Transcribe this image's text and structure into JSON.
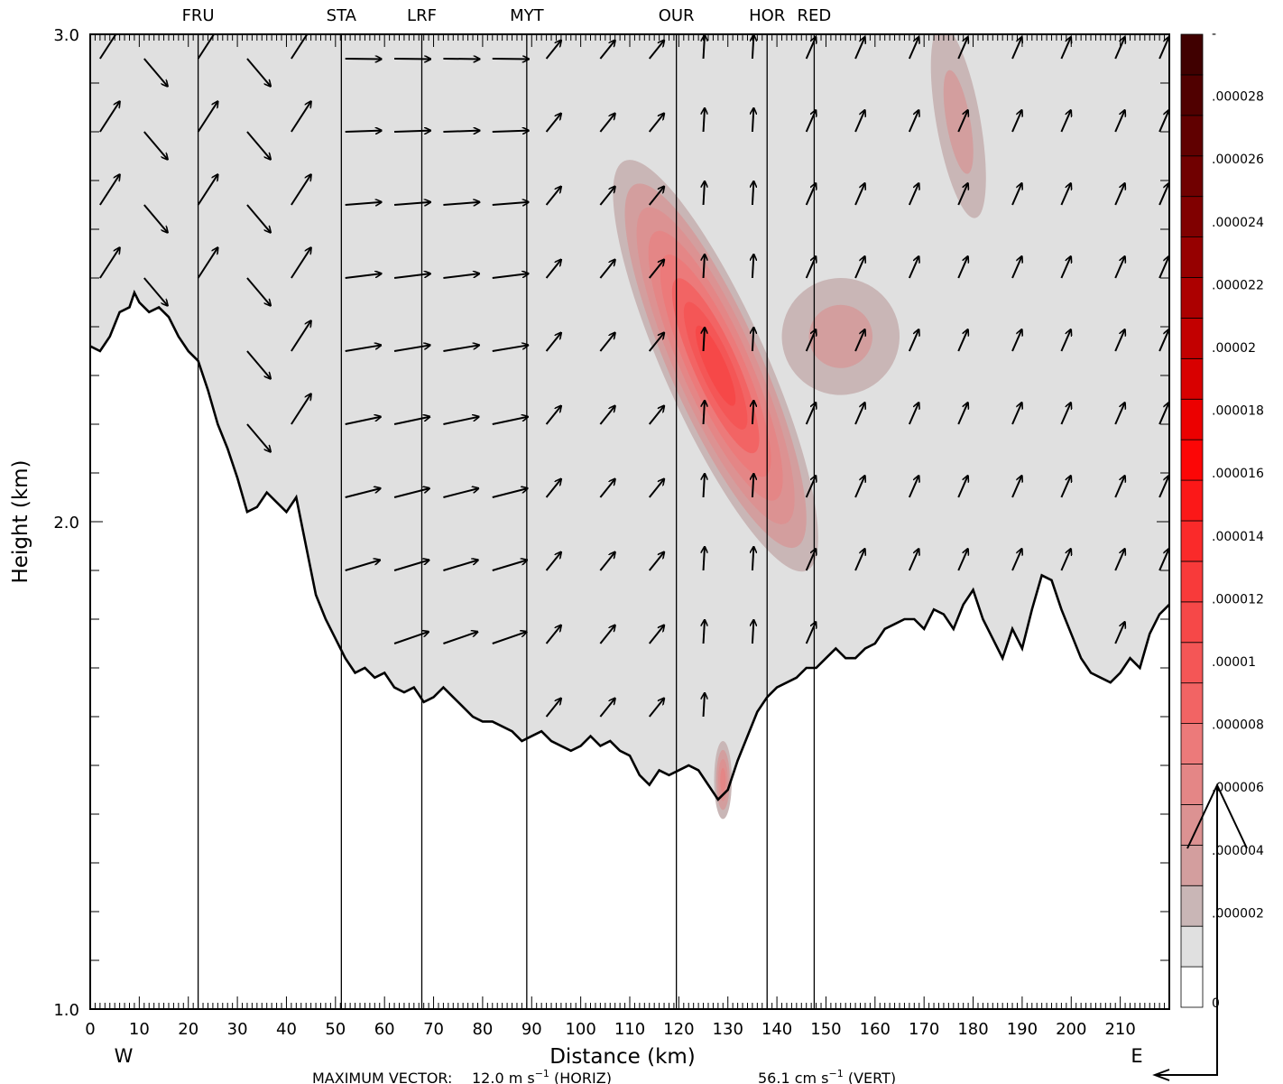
{
  "chart_data": {
    "type": "contour-vector-cross-section",
    "xlabel": "Distance (km)",
    "ylabel": "Height (km)",
    "xlim": [
      0,
      220
    ],
    "ylim": [
      1.0,
      3.0
    ],
    "x_ticks": [
      "0",
      "10",
      "20",
      "30",
      "40",
      "50",
      "60",
      "70",
      "80",
      "90",
      "100",
      "110",
      "120",
      "130",
      "140",
      "150",
      "160",
      "170",
      "180",
      "190",
      "200",
      "210"
    ],
    "x_tick_values": [
      0,
      10,
      20,
      30,
      40,
      50,
      60,
      70,
      80,
      90,
      100,
      110,
      120,
      130,
      140,
      150,
      160,
      170,
      180,
      190,
      200,
      210
    ],
    "y_ticks": [
      "1.0",
      "2.0",
      "3.0"
    ],
    "y_tick_values": [
      1.0,
      2.0,
      3.0
    ],
    "west_label": "W",
    "east_label": "E",
    "stations": [
      {
        "name": "FRU",
        "x": 22
      },
      {
        "name": "STA",
        "x": 51.2
      },
      {
        "name": "LRF",
        "x": 67.6
      },
      {
        "name": "MYT",
        "x": 89
      },
      {
        "name": "OUR",
        "x": 119.5
      },
      {
        "name": "HOR",
        "x": 138
      },
      {
        "name": "RED",
        "x": 147.6
      }
    ],
    "colorbar": {
      "labels": [
        "-",
        ".000028",
        ".000026",
        ".000024",
        ".000022",
        ".00002",
        ".000018",
        ".000016",
        ".000014",
        ".000012",
        ".00001",
        ".000008",
        ".000006",
        ".000004",
        ".000002",
        "0"
      ],
      "colors": [
        "#ffffff",
        "#e0e0e0",
        "#c9b6b6",
        "#d39e9e",
        "#dc9292",
        "#e48686",
        "#ec7a7a",
        "#f26464",
        "#f45656",
        "#f64848",
        "#f83a3a",
        "#fa2a2a",
        "#fb1818",
        "#fc0606",
        "#ec0000",
        "#d80000",
        "#c20000",
        "#ac0000",
        "#960000",
        "#800000",
        "#700000",
        "#600000",
        "#500000",
        "#400000"
      ]
    },
    "terrain": [
      [
        0,
        2.36
      ],
      [
        2,
        2.35
      ],
      [
        4,
        2.38
      ],
      [
        6,
        2.43
      ],
      [
        8,
        2.44
      ],
      [
        9,
        2.47
      ],
      [
        10,
        2.45
      ],
      [
        12,
        2.43
      ],
      [
        14,
        2.44
      ],
      [
        16,
        2.42
      ],
      [
        18,
        2.38
      ],
      [
        20,
        2.35
      ],
      [
        22,
        2.33
      ],
      [
        24,
        2.27
      ],
      [
        26,
        2.2
      ],
      [
        28,
        2.15
      ],
      [
        30,
        2.09
      ],
      [
        32,
        2.02
      ],
      [
        34,
        2.03
      ],
      [
        36,
        2.06
      ],
      [
        38,
        2.04
      ],
      [
        40,
        2.02
      ],
      [
        42,
        2.05
      ],
      [
        44,
        1.95
      ],
      [
        46,
        1.85
      ],
      [
        48,
        1.8
      ],
      [
        50,
        1.76
      ],
      [
        52,
        1.72
      ],
      [
        54,
        1.69
      ],
      [
        56,
        1.7
      ],
      [
        58,
        1.68
      ],
      [
        60,
        1.69
      ],
      [
        62,
        1.66
      ],
      [
        64,
        1.65
      ],
      [
        66,
        1.66
      ],
      [
        68,
        1.63
      ],
      [
        70,
        1.64
      ],
      [
        72,
        1.66
      ],
      [
        74,
        1.64
      ],
      [
        76,
        1.62
      ],
      [
        78,
        1.6
      ],
      [
        80,
        1.59
      ],
      [
        82,
        1.59
      ],
      [
        84,
        1.58
      ],
      [
        86,
        1.57
      ],
      [
        88,
        1.55
      ],
      [
        90,
        1.56
      ],
      [
        92,
        1.57
      ],
      [
        94,
        1.55
      ],
      [
        96,
        1.54
      ],
      [
        98,
        1.53
      ],
      [
        100,
        1.54
      ],
      [
        102,
        1.56
      ],
      [
        104,
        1.54
      ],
      [
        106,
        1.55
      ],
      [
        108,
        1.53
      ],
      [
        110,
        1.52
      ],
      [
        112,
        1.48
      ],
      [
        114,
        1.46
      ],
      [
        116,
        1.49
      ],
      [
        118,
        1.48
      ],
      [
        120,
        1.49
      ],
      [
        122,
        1.5
      ],
      [
        124,
        1.49
      ],
      [
        126,
        1.46
      ],
      [
        128,
        1.43
      ],
      [
        130,
        1.45
      ],
      [
        132,
        1.51
      ],
      [
        134,
        1.56
      ],
      [
        136,
        1.61
      ],
      [
        138,
        1.64
      ],
      [
        140,
        1.66
      ],
      [
        142,
        1.67
      ],
      [
        144,
        1.68
      ],
      [
        146,
        1.7
      ],
      [
        148,
        1.7
      ],
      [
        150,
        1.72
      ],
      [
        152,
        1.74
      ],
      [
        154,
        1.72
      ],
      [
        156,
        1.72
      ],
      [
        158,
        1.74
      ],
      [
        160,
        1.75
      ],
      [
        162,
        1.78
      ],
      [
        164,
        1.79
      ],
      [
        166,
        1.8
      ],
      [
        168,
        1.8
      ],
      [
        170,
        1.78
      ],
      [
        172,
        1.82
      ],
      [
        174,
        1.81
      ],
      [
        176,
        1.78
      ],
      [
        178,
        1.83
      ],
      [
        180,
        1.86
      ],
      [
        182,
        1.8
      ],
      [
        184,
        1.76
      ],
      [
        186,
        1.72
      ],
      [
        188,
        1.78
      ],
      [
        190,
        1.74
      ],
      [
        192,
        1.82
      ],
      [
        194,
        1.89
      ],
      [
        196,
        1.88
      ],
      [
        198,
        1.82
      ],
      [
        200,
        1.77
      ],
      [
        202,
        1.72
      ],
      [
        204,
        1.69
      ],
      [
        206,
        1.68
      ],
      [
        208,
        1.67
      ],
      [
        210,
        1.69
      ],
      [
        212,
        1.72
      ],
      [
        214,
        1.7
      ],
      [
        216,
        1.77
      ],
      [
        218,
        1.81
      ],
      [
        220,
        1.83
      ]
    ],
    "blobs": [
      {
        "x": 127.5,
        "y": 2.32,
        "rx": 10.5,
        "ry": 0.46,
        "rot": -24,
        "peak": 1.6e-05
      },
      {
        "x": 153,
        "y": 2.38,
        "rx": 12,
        "ry": 0.12,
        "rot": -6,
        "peak": 4e-06
      },
      {
        "x": 177,
        "y": 2.82,
        "rx": 4.5,
        "ry": 0.2,
        "rot": -10,
        "peak": 3e-06
      },
      {
        "x": 129,
        "y": 1.47,
        "rx": 1.8,
        "ry": 0.08,
        "rot": 0,
        "peak": 7e-06
      }
    ],
    "vector_columns": [
      2,
      11,
      22,
      32,
      41,
      52,
      62,
      72,
      82,
      93,
      104,
      114,
      125,
      135,
      146,
      156,
      167,
      177,
      188,
      198,
      209,
      218
    ],
    "vector_levels": [
      1.6,
      1.75,
      1.9,
      2.05,
      2.2,
      2.35,
      2.5,
      2.65,
      2.8,
      2.95
    ],
    "vector_scale": {
      "horiz": "12.0 m s⁻¹ (HORIZ)",
      "vert": "56.1 cm s⁻¹ (VERT)",
      "label": "MAXIMUM VECTOR:"
    },
    "footer_text": {
      "prefix": "MAXIMUM VECTOR:",
      "horiz_value": "12.0 m s",
      "horiz_suffix": " (HORIZ)",
      "vert_value": "56.1 cm s",
      "vert_suffix": " (VERT)",
      "exp": "−1"
    }
  }
}
